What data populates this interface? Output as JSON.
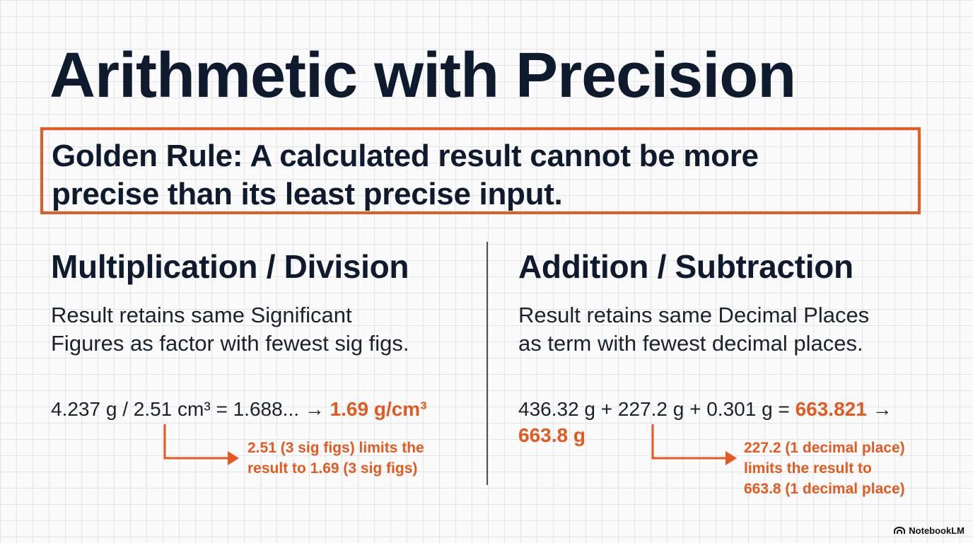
{
  "title": "Arithmetic with Precision",
  "golden_rule": {
    "line1": "Golden Rule: A calculated result cannot be more",
    "line2": "precise than its least precise input."
  },
  "left": {
    "heading": "Multiplication / Division",
    "desc_line1": "Result retains same Significant",
    "desc_line2": "Figures as factor with fewest sig figs.",
    "equation_text": "4.237 g / 2.51 cm³ = 1.688... →",
    "equation_result": "1.69 g/cm³",
    "note_line1": "2.51 (3 sig figs) limits the",
    "note_line2": "result to 1.69 (3 sig figs)"
  },
  "right": {
    "heading": "Addition / Subtraction",
    "desc_line1": "Result retains same Decimal Places",
    "desc_line2": "as term with fewest decimal places.",
    "equation_text": "436.32 g + 227.2 g + 0.301 g =",
    "equation_intermediate": "663.821",
    "arrow_glyph": "→",
    "equation_result": "663.8 g",
    "note_line1": "227.2 (1 decimal place)",
    "note_line2": "limits the result to",
    "note_line3": "663.8 (1 decimal place)"
  },
  "brand": {
    "label": "NotebookLM",
    "icon": "notebooklm-logo-icon"
  },
  "colors": {
    "accent": "#e35a20",
    "text": "#0e1b2e",
    "grid": "#e4e4e6"
  }
}
